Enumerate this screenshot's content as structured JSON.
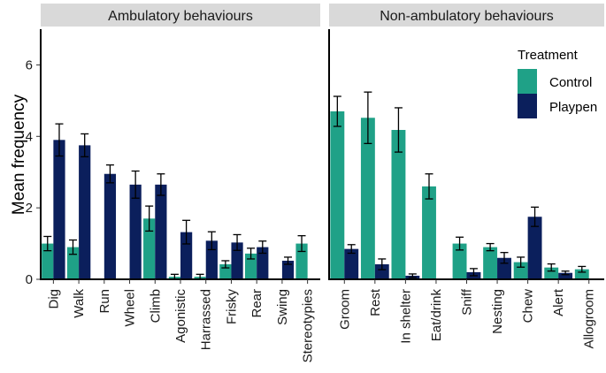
{
  "chart_data": {
    "type": "bar",
    "ylabel": "Mean frequency",
    "ylim": [
      0,
      7
    ],
    "yticks": [
      0,
      2,
      4,
      6
    ],
    "grid": false,
    "legend": {
      "title": "Treatment",
      "placement": "top-right",
      "entries": [
        {
          "name": "Control",
          "color": "#1fa187"
        },
        {
          "name": "Playpen",
          "color": "#0b1f5c"
        }
      ]
    },
    "colors": {
      "Control": "#1fa187",
      "Playpen": "#0b1f5c",
      "strip": "#d9d9d9",
      "error_bar": "#000000"
    },
    "panels": [
      {
        "title": "Ambulatory behaviours",
        "categories": [
          "Dig",
          "Walk",
          "Run",
          "Wheel",
          "Climb",
          "Agonistic",
          "Harrassed",
          "Frisky",
          "Rear",
          "Swing",
          "Stereotypies"
        ],
        "series": [
          {
            "name": "Control",
            "values": [
              1.0,
              0.9,
              null,
              null,
              1.7,
              0.07,
              0.07,
              0.42,
              0.72,
              null,
              1.0
            ],
            "errors": [
              0.2,
              0.2,
              null,
              null,
              0.35,
              0.07,
              0.07,
              0.1,
              0.15,
              null,
              0.22
            ]
          },
          {
            "name": "Playpen",
            "values": [
              3.9,
              3.75,
              2.95,
              2.65,
              2.65,
              1.32,
              1.08,
              1.03,
              0.9,
              0.52,
              null
            ],
            "errors": [
              0.45,
              0.32,
              0.25,
              0.38,
              0.3,
              0.33,
              0.25,
              0.22,
              0.17,
              0.1,
              null
            ]
          }
        ]
      },
      {
        "title": "Non-ambulatory behaviours",
        "categories": [
          "Groom",
          "Rest",
          "In shelter",
          "Eat/drink",
          "Sniff",
          "Nesting",
          "Chew",
          "Alert",
          "Allogroom"
        ],
        "series": [
          {
            "name": "Control",
            "values": [
              4.7,
              4.52,
              4.18,
              2.6,
              1.0,
              0.9,
              0.48,
              0.33,
              0.28
            ],
            "errors": [
              0.42,
              0.72,
              0.62,
              0.35,
              0.18,
              0.1,
              0.14,
              0.1,
              0.08
            ]
          },
          {
            "name": "Playpen",
            "values": [
              0.85,
              0.42,
              0.1,
              null,
              0.2,
              0.6,
              1.75,
              0.18,
              null
            ],
            "errors": [
              0.12,
              0.15,
              0.05,
              null,
              0.1,
              0.15,
              0.27,
              0.05,
              null
            ]
          }
        ]
      }
    ]
  }
}
